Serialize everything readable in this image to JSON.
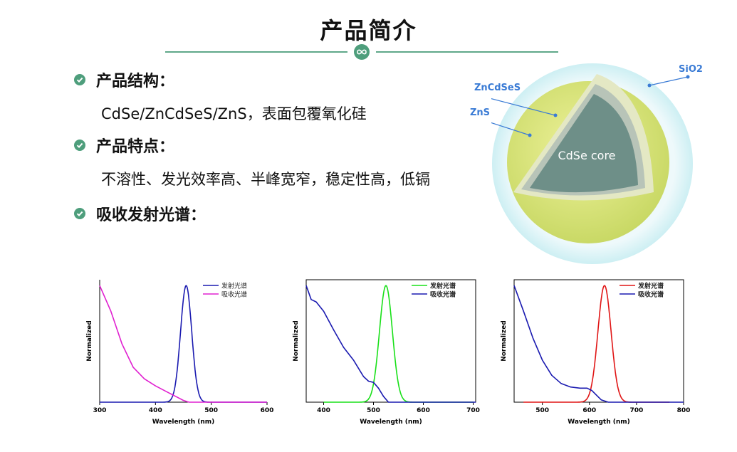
{
  "title": "产品简介",
  "sections": [
    {
      "heading": "产品结构：",
      "body": "CdSe/ZnCdSeS/ZnS，表面包覆氧化硅"
    },
    {
      "heading": "产品特点：",
      "body": "不溶性、发光效率高、半峰宽窄，稳定性高，低镉"
    },
    {
      "heading": "吸收发射光谱：",
      "body": ""
    }
  ],
  "diagram": {
    "labels": {
      "shell_outer": "SiO2",
      "shell_mid": "ZnCdSeS",
      "shell_inner": "ZnS",
      "core": "CdSe core"
    },
    "colors": {
      "silica": "#d8f4f6",
      "shell": "#d9e47a",
      "core": "#6e8f88",
      "label": "#3a7bd5"
    }
  },
  "chart_data": [
    {
      "type": "line",
      "xlabel": "Wavelength (nm)",
      "ylabel": "Normalized",
      "xlim": [
        300,
        600
      ],
      "ylim": [
        0,
        1.05
      ],
      "xticks": [
        300,
        400,
        500,
        600
      ],
      "legend_position": "top-right",
      "series": [
        {
          "name": "发射光谱",
          "color": "#1a1ab0",
          "kind": "gauss",
          "peak": 455,
          "width": 10,
          "amp": 1.0
        },
        {
          "name": "吸收光谱",
          "color": "#e020d0",
          "x": [
            300,
            320,
            340,
            360,
            380,
            400,
            420,
            440,
            450,
            460
          ],
          "y": [
            1.0,
            0.78,
            0.5,
            0.3,
            0.2,
            0.14,
            0.09,
            0.04,
            0.015,
            0.0
          ]
        }
      ]
    },
    {
      "type": "line",
      "xlabel": "Wavelength (nm)",
      "ylabel": "Normalized",
      "xlim": [
        365,
        705
      ],
      "ylim": [
        0,
        1.05
      ],
      "xticks": [
        400,
        500,
        600,
        700
      ],
      "legend_position": "top-right",
      "series": [
        {
          "name": "发射光谱",
          "color": "#18e018",
          "kind": "gauss",
          "peak": 525,
          "width": 13,
          "amp": 1.0,
          "start": 400,
          "end": 700
        },
        {
          "name": "吸收光谱",
          "color": "#1a1ab0",
          "x": [
            365,
            375,
            385,
            400,
            420,
            440,
            460,
            480,
            490,
            500,
            510,
            520,
            530
          ],
          "y": [
            1.0,
            0.88,
            0.86,
            0.78,
            0.62,
            0.47,
            0.36,
            0.22,
            0.18,
            0.17,
            0.12,
            0.05,
            0.0
          ]
        }
      ]
    },
    {
      "type": "line",
      "xlabel": "Wavelength (nm)",
      "ylabel": "Normalized",
      "xlim": [
        440,
        800
      ],
      "ylim": [
        0,
        1.05
      ],
      "xticks": [
        500,
        600,
        700,
        800
      ],
      "legend_position": "top-right",
      "series": [
        {
          "name": "发射光谱",
          "color": "#e01515",
          "kind": "gauss",
          "peak": 632,
          "width": 14,
          "amp": 1.0,
          "start": 460,
          "end": 770
        },
        {
          "name": "吸收光谱",
          "color": "#1a1ab0",
          "x": [
            440,
            460,
            480,
            500,
            520,
            540,
            560,
            580,
            595,
            605,
            615,
            625,
            640
          ],
          "y": [
            1.0,
            0.78,
            0.55,
            0.36,
            0.23,
            0.16,
            0.13,
            0.12,
            0.12,
            0.1,
            0.06,
            0.02,
            0.0
          ]
        }
      ]
    }
  ]
}
